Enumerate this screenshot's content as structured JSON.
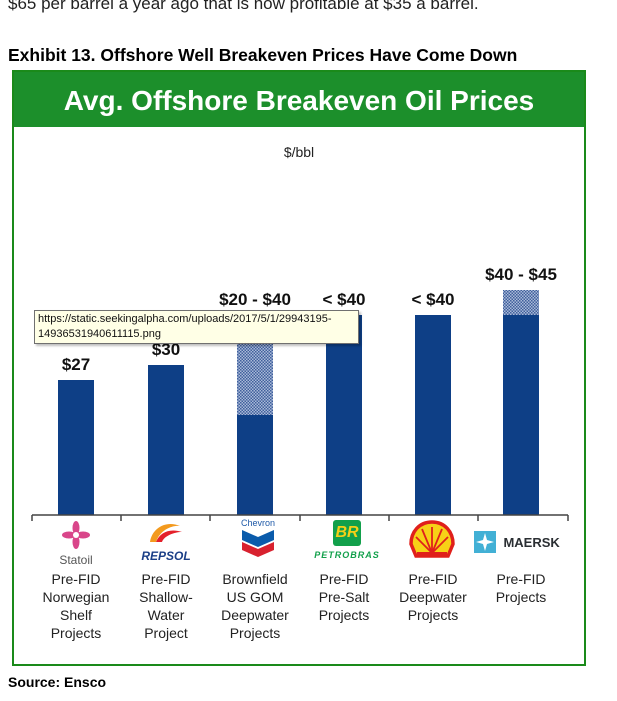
{
  "page": {
    "intro_text": "$65 per barrel a year ago that is now profitable at $35 a barrel.",
    "exhibit_title": "Exhibit 13.  Offshore Well Breakeven Prices Have Come Down",
    "source": "Source:  Ensco",
    "tooltip": "https://static.seekingalpha.com/uploads/2017/5/1/29943195-14936531940611115.png"
  },
  "logos": {
    "statoil": "Statoil",
    "repsol": "REPSOL",
    "chevron": "Chevron",
    "petrobras_mark": "BR",
    "petrobras": "PETROBRAS",
    "maersk": "MAERSK"
  },
  "colors": {
    "bar": "#0e3f86",
    "banner": "#1c8f2b",
    "hatch": "#7b95c2"
  },
  "chart_data": {
    "type": "bar",
    "title": "Avg. Offshore Breakeven Oil Prices",
    "ylabel": "$/bbl",
    "ylim": [
      0,
      50
    ],
    "grid": false,
    "categories": [
      "Pre-FID Norwegian Shelf Projects",
      "Pre-FID Shallow-Water Project",
      "Brownfield US GOM Deepwater Projects",
      "Pre-FID Pre-Salt Projects",
      "Pre-FID Deepwater Projects",
      "Pre-FID Projects"
    ],
    "category_lines": [
      [
        "Pre-FID",
        "Norwegian",
        "Shelf",
        "Projects"
      ],
      [
        "Pre-FID",
        "Shallow-",
        "Water",
        "Project"
      ],
      [
        "Brownfield",
        "US GOM",
        "Deepwater",
        "Projects"
      ],
      [
        "Pre-FID",
        "Pre-Salt",
        "Projects"
      ],
      [
        "Pre-FID",
        "Deepwater",
        "Projects"
      ],
      [
        "Pre-FID",
        "Projects"
      ]
    ],
    "companies": [
      "Statoil",
      "Repsol",
      "Chevron",
      "Petrobras",
      "Shell",
      "Maersk"
    ],
    "low": [
      27,
      30,
      20,
      40,
      40,
      40
    ],
    "high": [
      27,
      30,
      40,
      40,
      40,
      45
    ],
    "data_labels": [
      "$27",
      "$30",
      "$20 - $40",
      "< $40",
      "< $40",
      "$40 - $45"
    ]
  }
}
